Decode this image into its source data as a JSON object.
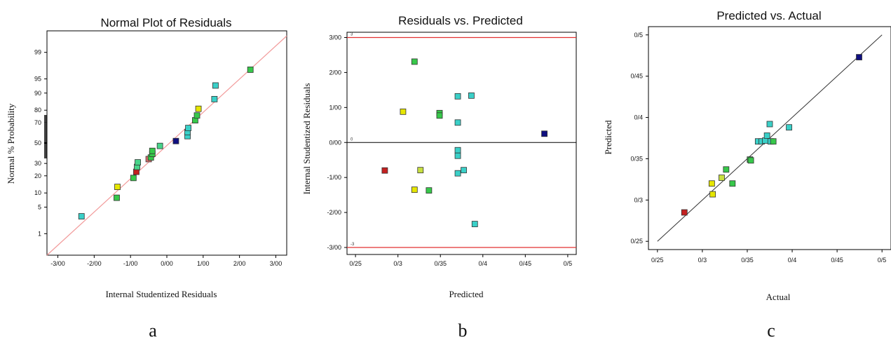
{
  "chart_data": [
    {
      "type": "scatter",
      "panel_label": "a",
      "title": "Normal Plot of Residuals",
      "xlabel": "Internal Studentized Residuals",
      "ylabel": "Normal % Probability",
      "xlim": [
        -3.3,
        3.3
      ],
      "x_ticks": [
        -3,
        -2,
        -1,
        0,
        1,
        2,
        3
      ],
      "x_tick_labels": [
        "-3/00",
        "-2/00",
        "-1/00",
        "0/00",
        "1/00",
        "2/00",
        "3/00"
      ],
      "y_scale": "normal-probability",
      "y_ticks": [
        1,
        5,
        10,
        20,
        30,
        50,
        70,
        80,
        90,
        95,
        99
      ],
      "y_tick_labels": [
        "1",
        "5",
        "10",
        "20",
        "30",
        "50",
        "70",
        "80",
        "90",
        "95",
        "99"
      ],
      "reference_line": {
        "x": [
          -3.3,
          3.3
        ],
        "y": [
          0.2,
          99.7
        ],
        "color": "#f29a9a"
      },
      "points": [
        {
          "x": -2.35,
          "y": 3,
          "color": "#3ad0c8"
        },
        {
          "x": -1.38,
          "y": 8,
          "color": "#37c84a"
        },
        {
          "x": -1.36,
          "y": 13,
          "color": "#e6e600"
        },
        {
          "x": -0.92,
          "y": 18.5,
          "color": "#37c84a"
        },
        {
          "x": -0.84,
          "y": 23,
          "color": "#c42020"
        },
        {
          "x": -0.82,
          "y": 27,
          "color": "#48d48a"
        },
        {
          "x": -0.8,
          "y": 31,
          "color": "#48d48a"
        },
        {
          "x": -0.5,
          "y": 34,
          "color": "#e07070"
        },
        {
          "x": -0.44,
          "y": 35.5,
          "color": "#37c84a"
        },
        {
          "x": -0.4,
          "y": 39,
          "color": "#37c84a"
        },
        {
          "x": -0.4,
          "y": 42,
          "color": "#37c84a"
        },
        {
          "x": -0.19,
          "y": 47,
          "color": "#48d48a"
        },
        {
          "x": 0.25,
          "y": 52,
          "color": "#101080"
        },
        {
          "x": 0.57,
          "y": 57,
          "color": "#3ad0c8"
        },
        {
          "x": 0.57,
          "y": 61,
          "color": "#3ad0c8"
        },
        {
          "x": 0.59,
          "y": 65,
          "color": "#3ad0c8"
        },
        {
          "x": 0.78,
          "y": 72,
          "color": "#37c84a"
        },
        {
          "x": 0.83,
          "y": 76,
          "color": "#37c84a"
        },
        {
          "x": 0.87,
          "y": 81,
          "color": "#e6e600"
        },
        {
          "x": 1.31,
          "y": 87,
          "color": "#3ad0c8"
        },
        {
          "x": 1.34,
          "y": 93,
          "color": "#3ad0c8"
        },
        {
          "x": 2.3,
          "y": 97,
          "color": "#37c84a"
        }
      ]
    },
    {
      "type": "scatter",
      "panel_label": "b",
      "title": "Residuals vs. Predicted",
      "xlabel": "Predicted",
      "ylabel": "Internal Studentized Residuals",
      "xlim": [
        0.24,
        0.51
      ],
      "ylim": [
        -3.2,
        3.15
      ],
      "x_ticks": [
        0.25,
        0.3,
        0.35,
        0.4,
        0.45,
        0.5
      ],
      "x_tick_labels": [
        "0/25",
        "0/3",
        "0/35",
        "0/4",
        "0/45",
        "0/5"
      ],
      "y_ticks": [
        3,
        2,
        1,
        0,
        -1,
        -2,
        -3
      ],
      "y_tick_labels": [
        "3/00",
        "2/00",
        "1/00",
        "0/00",
        "-1/00",
        "-2/00",
        "-3/00"
      ],
      "limit_lines": [
        3,
        -3
      ],
      "limit_labels": [
        "3",
        "-3"
      ],
      "zero_label": "0",
      "points": [
        {
          "x": 0.2845,
          "y": -0.8,
          "color": "#c42020"
        },
        {
          "x": 0.306,
          "y": 0.88,
          "color": "#e6e600"
        },
        {
          "x": 0.3195,
          "y": 2.31,
          "color": "#37c84a"
        },
        {
          "x": 0.3195,
          "y": -1.35,
          "color": "#e6e600"
        },
        {
          "x": 0.3265,
          "y": -0.79,
          "color": "#c8e040"
        },
        {
          "x": 0.3365,
          "y": -1.37,
          "color": "#37c84a"
        },
        {
          "x": 0.349,
          "y": 0.84,
          "color": "#37c84a"
        },
        {
          "x": 0.349,
          "y": 0.77,
          "color": "#37c84a"
        },
        {
          "x": 0.3705,
          "y": 1.32,
          "color": "#3ad0c8"
        },
        {
          "x": 0.3705,
          "y": 0.57,
          "color": "#3ad0c8"
        },
        {
          "x": 0.3705,
          "y": -0.22,
          "color": "#3ad0c8"
        },
        {
          "x": 0.3705,
          "y": -0.38,
          "color": "#3ad0c8"
        },
        {
          "x": 0.3705,
          "y": -0.88,
          "color": "#3ad0c8"
        },
        {
          "x": 0.3775,
          "y": -0.79,
          "color": "#3ad0c8"
        },
        {
          "x": 0.3865,
          "y": 1.34,
          "color": "#3ad0c8"
        },
        {
          "x": 0.3905,
          "y": -2.33,
          "color": "#3ad0c8"
        },
        {
          "x": 0.4725,
          "y": 0.25,
          "color": "#101080"
        }
      ]
    },
    {
      "type": "scatter",
      "panel_label": "c",
      "title": "Predicted vs. Actual",
      "xlabel": "Actual",
      "ylabel": "Predicted",
      "xlim": [
        0.24,
        0.51
      ],
      "ylim": [
        0.24,
        0.51
      ],
      "x_ticks": [
        0.25,
        0.3,
        0.35,
        0.4,
        0.45,
        0.5
      ],
      "x_tick_labels": [
        "0/25",
        "0/3",
        "0/35",
        "0/4",
        "0/45",
        "0/5"
      ],
      "y_ticks": [
        0.25,
        0.3,
        0.35,
        0.4,
        0.45,
        0.5
      ],
      "y_tick_labels": [
        "0/25",
        "0/3",
        "0/35",
        "0/4",
        "0/45",
        "0/5"
      ],
      "reference_line": {
        "x": [
          0.25,
          0.5
        ],
        "y": [
          0.25,
          0.5
        ],
        "color": "#333333"
      },
      "points": [
        {
          "x": 0.28,
          "y": 0.285,
          "color": "#c42020"
        },
        {
          "x": 0.3105,
          "y": 0.32,
          "color": "#e6e600"
        },
        {
          "x": 0.3115,
          "y": 0.307,
          "color": "#e6e600"
        },
        {
          "x": 0.3215,
          "y": 0.327,
          "color": "#c8e040"
        },
        {
          "x": 0.3265,
          "y": 0.337,
          "color": "#37c84a"
        },
        {
          "x": 0.3335,
          "y": 0.32,
          "color": "#37c84a"
        },
        {
          "x": 0.353,
          "y": 0.349,
          "color": "#37c84a"
        },
        {
          "x": 0.354,
          "y": 0.348,
          "color": "#37c84a"
        },
        {
          "x": 0.362,
          "y": 0.371,
          "color": "#3ad0c8"
        },
        {
          "x": 0.366,
          "y": 0.371,
          "color": "#3ad0c8"
        },
        {
          "x": 0.37,
          "y": 0.372,
          "color": "#3ad0c8"
        },
        {
          "x": 0.372,
          "y": 0.378,
          "color": "#3ad0c8"
        },
        {
          "x": 0.375,
          "y": 0.392,
          "color": "#3ad0c8"
        },
        {
          "x": 0.376,
          "y": 0.371,
          "color": "#3ad0c8"
        },
        {
          "x": 0.379,
          "y": 0.371,
          "color": "#37c84a"
        },
        {
          "x": 0.3965,
          "y": 0.388,
          "color": "#3ad0c8"
        },
        {
          "x": 0.4745,
          "y": 0.473,
          "color": "#101080"
        }
      ]
    }
  ]
}
